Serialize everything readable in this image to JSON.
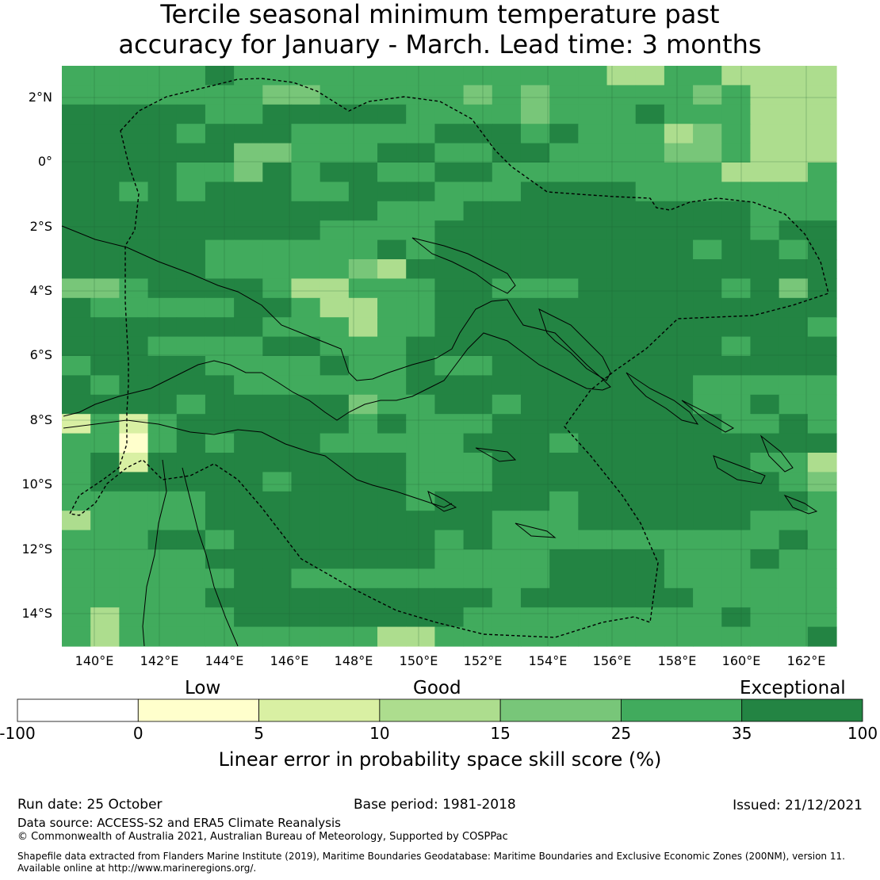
{
  "title_lines": [
    "Tercile seasonal minimum temperature past",
    "accuracy for January - March. Lead time: 3 months"
  ],
  "axes": {
    "lon_ticks": [
      "140°E",
      "142°E",
      "144°E",
      "146°E",
      "148°E",
      "150°E",
      "152°E",
      "154°E",
      "156°E",
      "158°E",
      "160°E",
      "162°E"
    ],
    "lat_ticks": [
      "2°N",
      "0°",
      "2°S",
      "4°S",
      "6°S",
      "8°S",
      "10°S",
      "12°S",
      "14°S"
    ]
  },
  "colorbar": {
    "categories": [
      "Low",
      "Good",
      "Exceptional"
    ],
    "ticks": [
      "-100",
      "0",
      "5",
      "10",
      "15",
      "25",
      "35",
      "100"
    ],
    "colors": [
      "#ffffff",
      "#ffffcc",
      "#d9f0a3",
      "#addd8e",
      "#78c679",
      "#41ab5d",
      "#238443"
    ],
    "label": "Linear error in probability space skill score (%)"
  },
  "footer": {
    "run_date": "Run date: 25 October",
    "base_period": "Base period: 1981-2018",
    "issued": "Issued: 21/12/2021",
    "data_source": "Data source: ACCESS-S2 and ERA5 Climate Reanalysis",
    "copyright": "© Commonwealth of Australia 2021, Australian Bureau of Meteorology, Supported by COSPPac",
    "shapefile_1": "Shapefile data extracted from Flanders Marine Institute (2019), Maritime Boundaries Geodatabase: Maritime Boundaries and Exclusive Economic Zones (200NM), version 11.",
    "shapefile_2": "Available online at http://www.marineregions.org/."
  },
  "map": {
    "grid_rows": [
      "444446444444444444433443333",
      "444444455444445454444454333",
      "666664466666444454446444333",
      "666646664444466646444354333",
      "666666554446644664444554333",
      "666644564664466444444443334",
      "664646664466644466664444444",
      "666666666664446666666666444",
      "666666666444466666666666466",
      "666664444446466666666646646",
      "666664444453666666666666666",
      "554666643344466444666664656",
      "644444664334466666666666666",
      "666666644434466666666666664",
      "666444466444666666666664666",
      "466664444644644666666666666",
      "646666444444666666666644444",
      "666646666654466466666644644",
      "242466666646444666666664464",
      "441464666444446664666666666",
      "462666666666444666666666443",
      "466666646666444666666666645",
      "444446666666466664666666664",
      "344446666666666444666666444",
      "444664666666646444444444464",
      "444446666666644446666444644",
      "444444664444444446666444444",
      "444446666666666466666644444",
      "434444666666664444444446444",
      "434444444443344444444444446"
    ],
    "grid_codes": {
      "1": "#ffffcc",
      "2": "#d9f0a3",
      "3": "#addd8e",
      "4": "#41ab5d",
      "5": "#78c679",
      "6": "#238443"
    }
  }
}
